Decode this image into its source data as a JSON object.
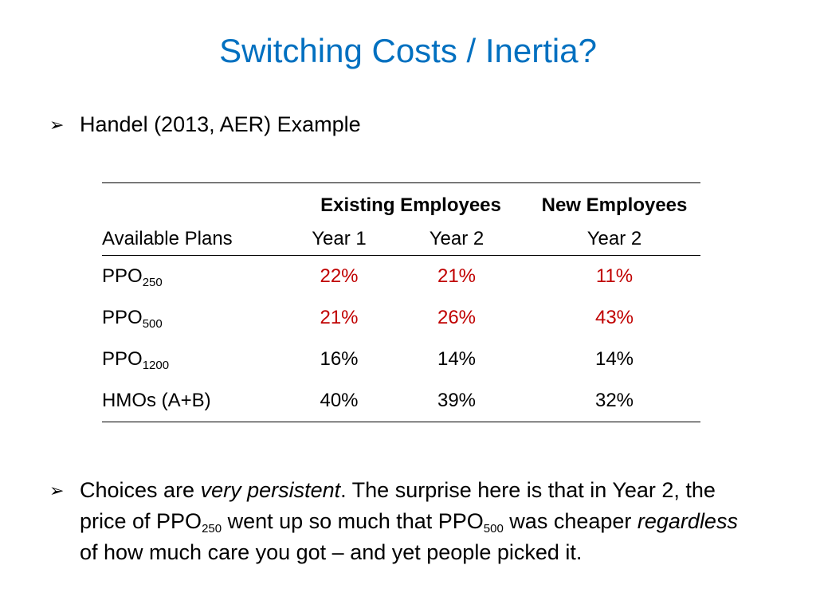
{
  "slide": {
    "title": "Switching Costs / Inertia?",
    "bullet1": "Handel (2013, AER) Example",
    "bullet2": {
      "t1": "Choices are ",
      "t2_italic": "very persistent",
      "t3": ". The surprise here is that in Year 2, the price of PPO",
      "sub1": "250",
      "t4": " went up so much that PPO",
      "sub2": "500",
      "t5": " was cheaper ",
      "t6_italic": "regardless",
      "t7": " of how much care you got – and yet people picked it."
    },
    "bullet_marker": "➢"
  },
  "table": {
    "header_existing": "Existing Employees",
    "header_new": "New Employees",
    "col_plan": "Available Plans",
    "col_existing_y1": "Year 1",
    "col_existing_y2": "Year 2",
    "col_new_y2": "Year 2",
    "rows": [
      {
        "plan": "PPO",
        "sub": "250",
        "y1": "22%",
        "y2": "21%",
        "new_y2": "11%",
        "highlight": true
      },
      {
        "plan": "PPO",
        "sub": "500",
        "y1": "21%",
        "y2": "26%",
        "new_y2": "43%",
        "highlight": true
      },
      {
        "plan": "PPO",
        "sub": "1200",
        "y1": "16%",
        "y2": "14%",
        "new_y2": "14%",
        "highlight": false
      },
      {
        "plan": "HMOs (A+B)",
        "sub": "",
        "y1": "40%",
        "y2": "39%",
        "new_y2": "32%",
        "highlight": false
      }
    ],
    "highlight_color": "#c00000"
  }
}
